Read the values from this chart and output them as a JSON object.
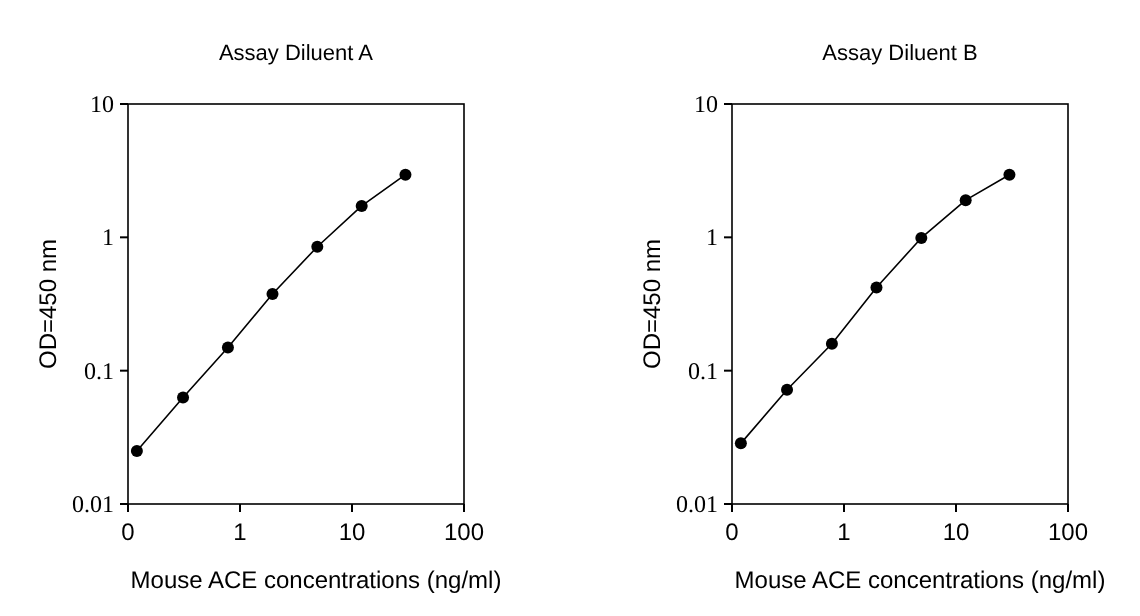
{
  "chart_data": [
    {
      "type": "line",
      "title": "Assay Diluent A",
      "xlabel": "Mouse ACE concentrations (ng/ml)",
      "ylabel": "OD=450 nm",
      "log": "xy",
      "marker": "circle",
      "line_style": "solid",
      "grid": false,
      "x": [
        0.12,
        0.31,
        0.78,
        1.95,
        4.9,
        12.2,
        30
      ],
      "series": [
        {
          "color": "#000000",
          "values": [
            0.025,
            0.063,
            0.149,
            0.376,
            0.85,
            1.72,
            2.95
          ]
        }
      ],
      "xlim": [
        0.1,
        100
      ],
      "xticks": [
        {
          "value": 0.1,
          "label": "0"
        },
        1,
        10,
        100
      ],
      "ylim": [
        0.01,
        10
      ],
      "yticks": [
        0.01,
        0.1,
        1,
        10
      ]
    },
    {
      "type": "line",
      "title": "Assay Diluent B",
      "xlabel": "Mouse ACE concentrations (ng/ml)",
      "ylabel": "OD=450 nm",
      "log": "xy",
      "marker": "circle",
      "line_style": "solid",
      "grid": false,
      "x": [
        0.12,
        0.31,
        0.78,
        1.95,
        4.9,
        12.2,
        30
      ],
      "series": [
        {
          "color": "#000000",
          "values": [
            0.0285,
            0.072,
            0.159,
            0.42,
            0.99,
            1.9,
            2.95
          ]
        }
      ],
      "xlim": [
        0.1,
        100
      ],
      "xticks": [
        {
          "value": 0.1,
          "label": "0"
        },
        1,
        10,
        100
      ],
      "ylim": [
        0.01,
        10
      ],
      "yticks": [
        0.01,
        0.1,
        1,
        10
      ]
    }
  ]
}
